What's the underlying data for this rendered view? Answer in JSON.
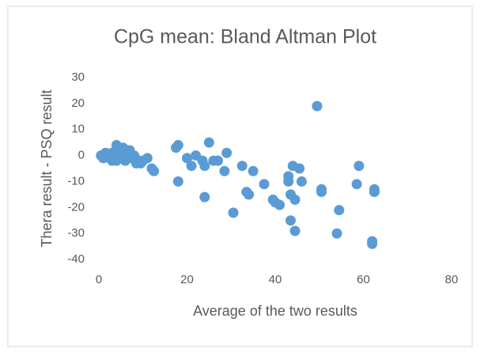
{
  "chart_data": {
    "type": "scatter",
    "title": "CpG mean: Bland Altman Plot",
    "x_label": "Average of the two results",
    "y_label": "Thera result - PSQ result",
    "color": "#5b9bd5",
    "grid": false,
    "xlim": [
      0,
      80
    ],
    "xticks": [
      0,
      20,
      40,
      60,
      80
    ],
    "ylim": [
      -40,
      30
    ],
    "yticks": [
      -40,
      -30,
      -20,
      -10,
      0,
      10,
      20,
      30
    ],
    "x": [
      0.5,
      1,
      1.5,
      2,
      2.5,
      3,
      3,
      3.5,
      4,
      4,
      4.5,
      5,
      5.5,
      6,
      6,
      6.5,
      7,
      7.5,
      8,
      8.5,
      9,
      9.5,
      10,
      11,
      12,
      12.5,
      17.5,
      18,
      18,
      20,
      21,
      22,
      23.5,
      24,
      24,
      25,
      26,
      27,
      28.5,
      29,
      30.5,
      32.5,
      33.5,
      34,
      35,
      37.5,
      39.5,
      40,
      41,
      43,
      43,
      43.5,
      43.5,
      44,
      44.5,
      44.5,
      45.5,
      46,
      49.5,
      50.5,
      50.5,
      54,
      54.5,
      58.5,
      59,
      62,
      62,
      62.5,
      62.5
    ],
    "values": [
      0,
      -1,
      1,
      0,
      -1,
      1,
      -2,
      0,
      4,
      -2,
      2,
      -1,
      3,
      0,
      -2,
      1,
      2,
      -1,
      0,
      -3,
      -2,
      -3,
      -2,
      -1,
      -5,
      -6,
      3,
      4,
      -10,
      -1,
      -4,
      0,
      -2,
      -16,
      -4,
      5,
      -2,
      -2,
      -6,
      1,
      -22,
      -4,
      -14,
      -15,
      -6,
      -11,
      -17,
      -18,
      -19,
      -8,
      -10,
      -15,
      -25,
      -4,
      -17,
      -29,
      -5,
      -10,
      19,
      -13,
      -14,
      -30,
      -21,
      -11,
      -4,
      -34,
      -33,
      -13,
      -14
    ]
  }
}
